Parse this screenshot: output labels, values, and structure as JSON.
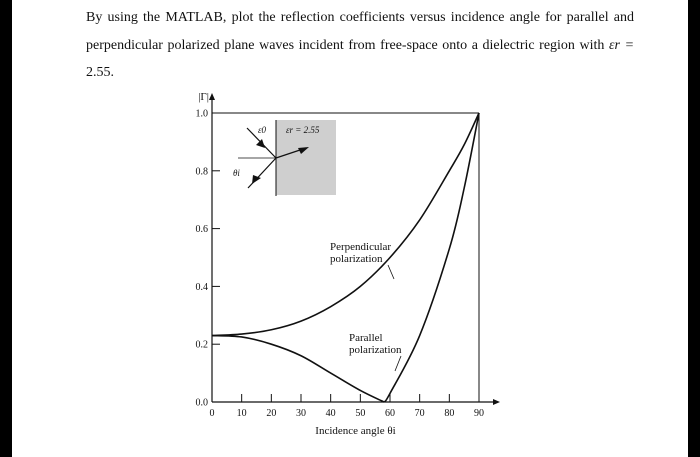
{
  "question": {
    "text": "By using the MATLAB, plot the reflection coefficients versus incidence angle for parallel and perpendicular polarized plane waves incident from free-space onto a dielectric region with",
    "symbol": "εr =",
    "value": "2.55."
  },
  "chart_data": {
    "type": "line",
    "xlabel": "Incidence angle θi",
    "ylabel": "|Γ|",
    "xlim": [
      0,
      90
    ],
    "ylim": [
      0,
      1.0
    ],
    "x_ticks": [
      "0",
      "10",
      "20",
      "30",
      "40",
      "50",
      "60",
      "70",
      "80",
      "90"
    ],
    "y_ticks": [
      "0.0",
      "0.2",
      "0.4",
      "0.6",
      "0.8",
      "1.0"
    ],
    "series": [
      {
        "name": "Perpendicular polarization",
        "x": [
          0,
          10,
          20,
          30,
          40,
          50,
          60,
          70,
          80,
          85,
          90
        ],
        "values": [
          0.23,
          0.235,
          0.25,
          0.28,
          0.33,
          0.4,
          0.5,
          0.63,
          0.8,
          0.89,
          1.0
        ]
      },
      {
        "name": "Parallel polarization",
        "x": [
          0,
          10,
          20,
          30,
          40,
          50,
          58,
          60,
          70,
          80,
          85,
          90
        ],
        "values": [
          0.23,
          0.225,
          0.2,
          0.16,
          0.1,
          0.04,
          0.0,
          0.03,
          0.23,
          0.53,
          0.74,
          1.0
        ]
      }
    ],
    "inset": {
      "eps0_label": "ε0",
      "epsr_label": "εr = 2.55",
      "theta_label": "θi"
    },
    "grid": false
  }
}
